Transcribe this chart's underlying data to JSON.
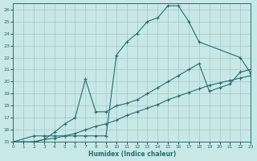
{
  "background_color": "#c8e8e8",
  "grid_color": "#a8cccc",
  "line_color": "#2a6b6b",
  "xlabel": "Humidex (Indice chaleur)",
  "xlim": [
    0,
    23
  ],
  "ylim": [
    15,
    26.5
  ],
  "yticks": [
    15,
    16,
    17,
    18,
    19,
    20,
    21,
    22,
    23,
    24,
    25,
    26
  ],
  "xticks": [
    0,
    1,
    2,
    3,
    4,
    5,
    6,
    7,
    8,
    9,
    10,
    11,
    12,
    13,
    14,
    15,
    16,
    17,
    18,
    19,
    20,
    21,
    22,
    23
  ],
  "line_peak_x": [
    0,
    2,
    3,
    4,
    5,
    6,
    7,
    8,
    9,
    10,
    11,
    12,
    13,
    14,
    15,
    16,
    17,
    18,
    22,
    23
  ],
  "line_peak_y": [
    15.0,
    15.5,
    15.5,
    15.5,
    15.5,
    15.5,
    15.5,
    15.5,
    15.5,
    22.2,
    23.3,
    24.0,
    25.0,
    25.3,
    26.3,
    26.3,
    25.0,
    23.3,
    22.0,
    20.7
  ],
  "line_mid_x": [
    0,
    2,
    3,
    4,
    5,
    6,
    7,
    8,
    9,
    10,
    11,
    12,
    13,
    14,
    15,
    16,
    17,
    18,
    19,
    20,
    21,
    22,
    23
  ],
  "line_mid_y": [
    15.0,
    15.0,
    15.2,
    15.8,
    16.5,
    17.0,
    20.2,
    17.5,
    17.5,
    18.0,
    18.2,
    18.5,
    19.0,
    19.5,
    20.0,
    20.5,
    21.0,
    21.5,
    19.2,
    19.5,
    19.8,
    20.8,
    21.0
  ],
  "line_base_x": [
    0,
    1,
    2,
    3,
    4,
    5,
    6,
    7,
    8,
    9,
    10,
    11,
    12,
    13,
    14,
    15,
    16,
    17,
    18,
    19,
    20,
    21,
    22,
    23
  ],
  "line_base_y": [
    15.0,
    15.0,
    15.0,
    15.2,
    15.3,
    15.5,
    15.7,
    16.0,
    16.3,
    16.5,
    16.8,
    17.2,
    17.5,
    17.8,
    18.1,
    18.5,
    18.8,
    19.1,
    19.4,
    19.7,
    19.9,
    20.1,
    20.3,
    20.5
  ]
}
